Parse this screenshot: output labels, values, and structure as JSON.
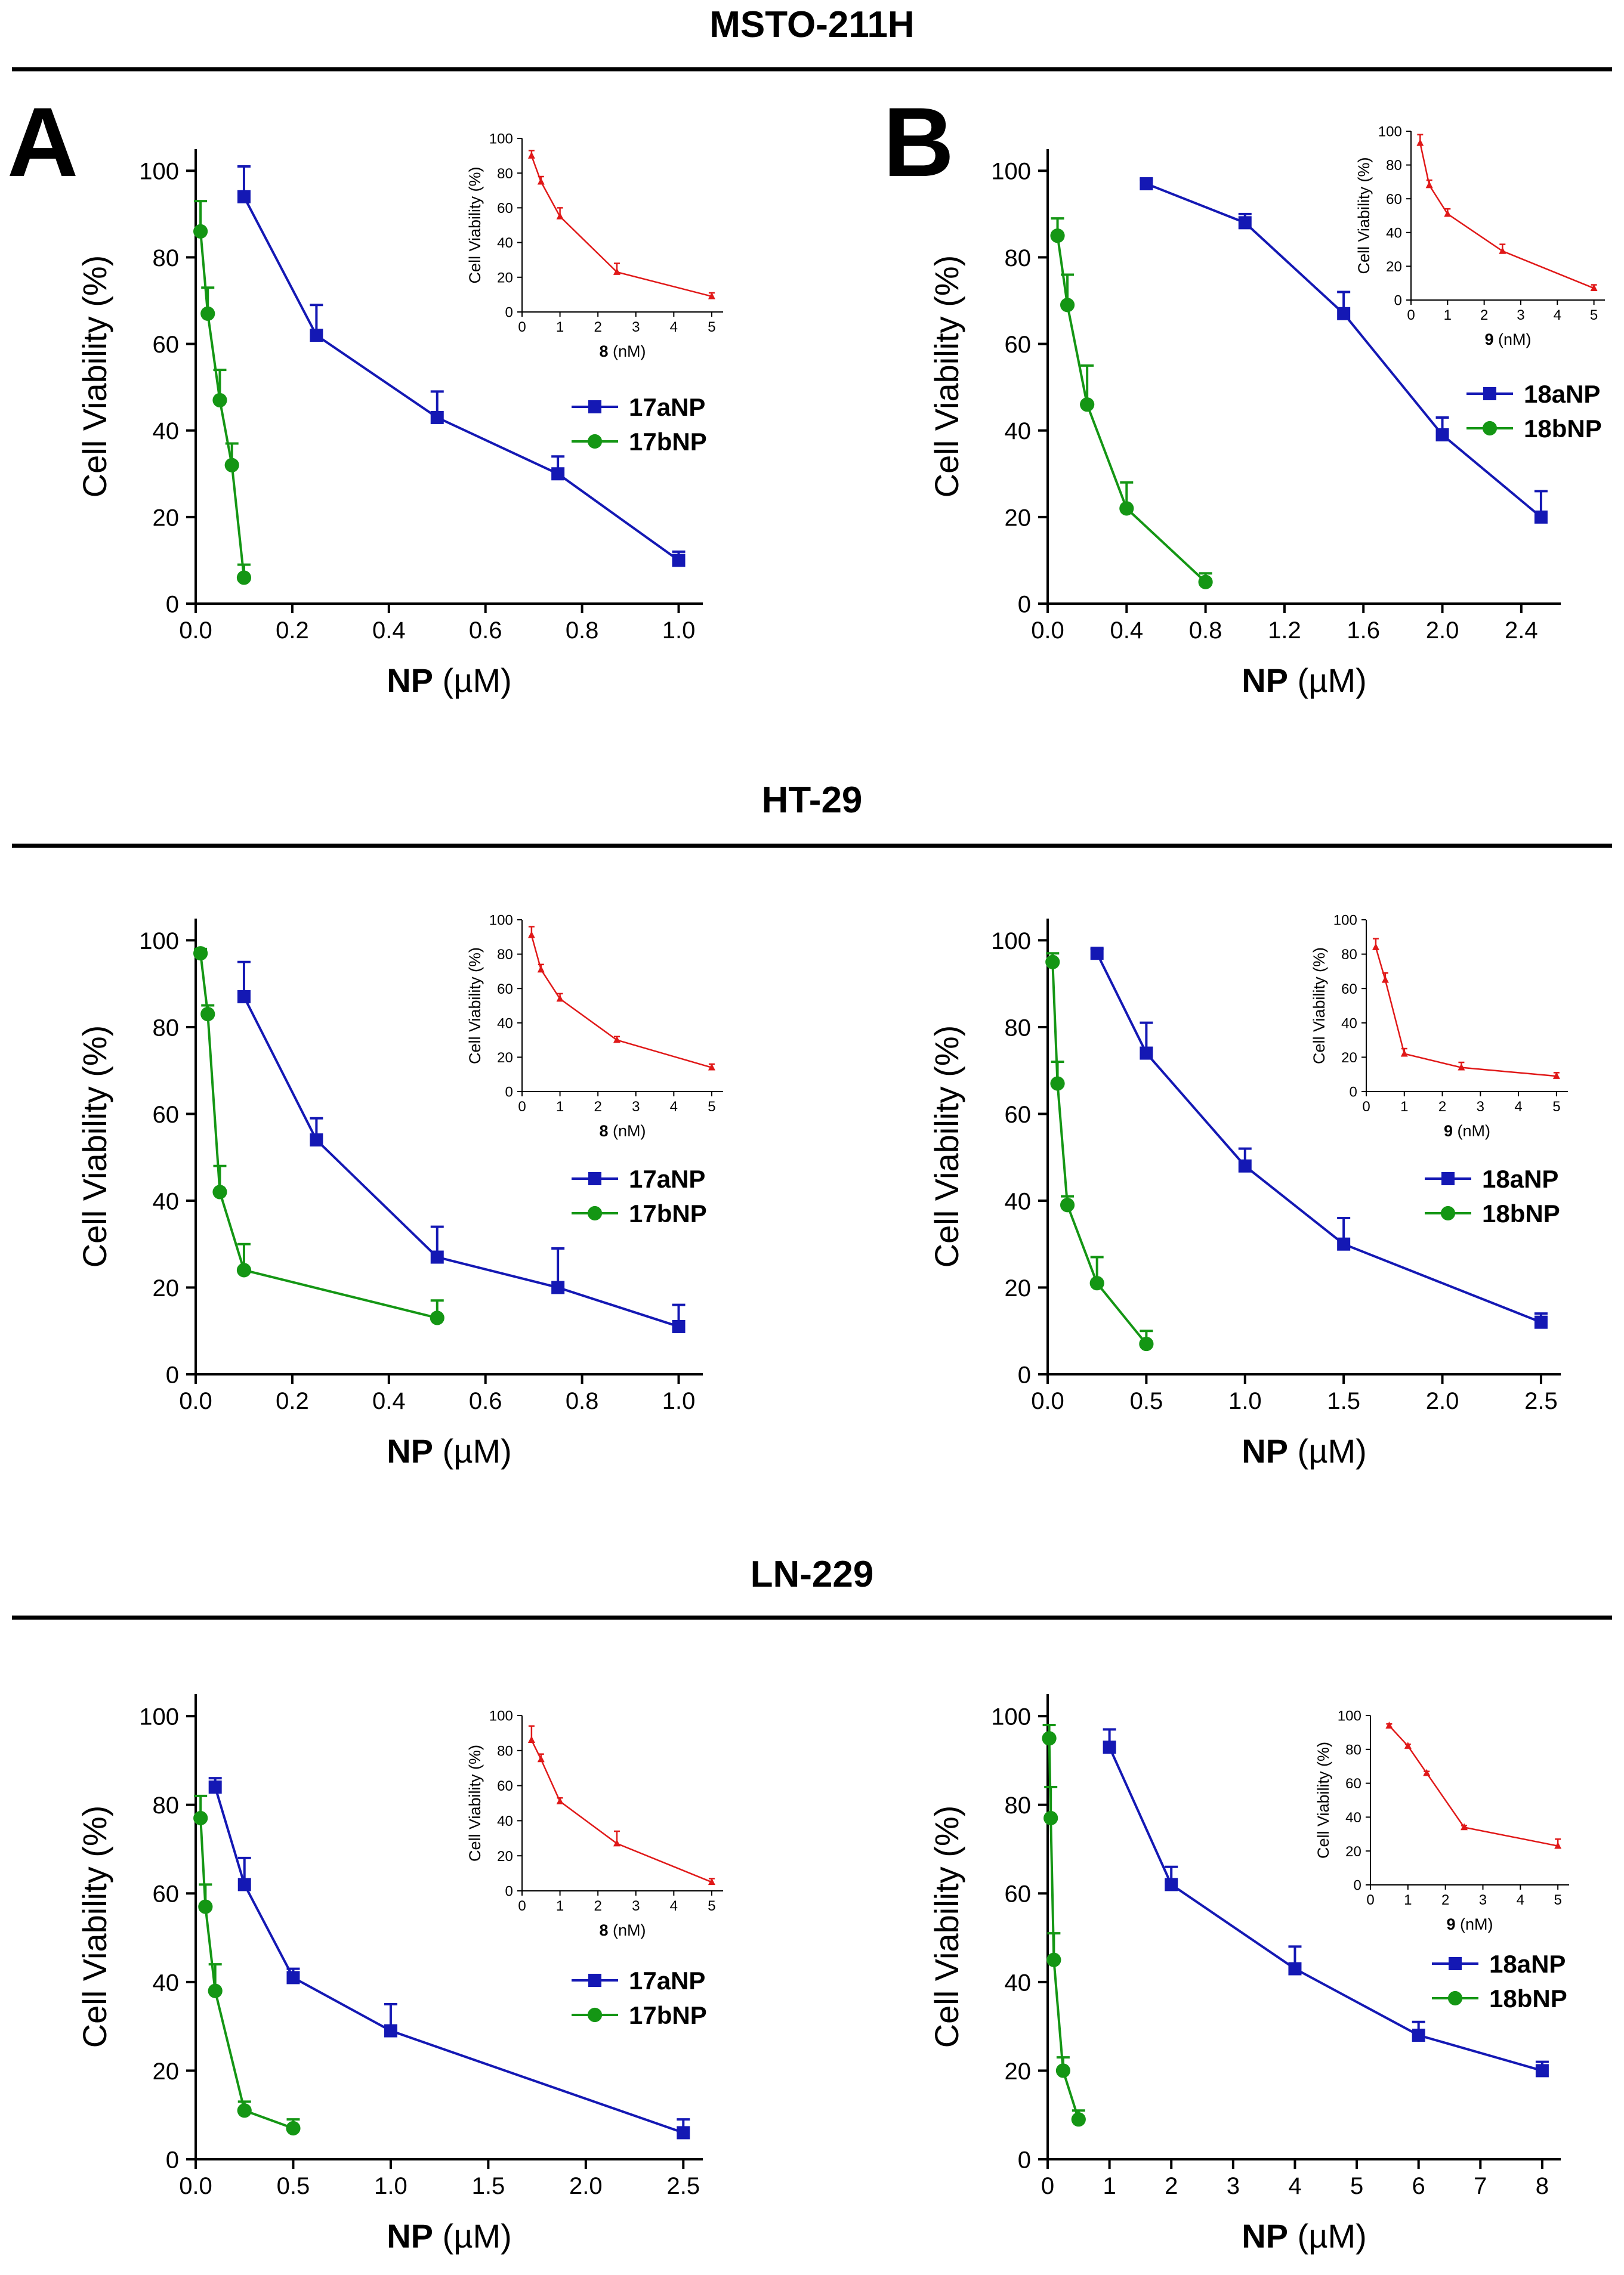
{
  "panel_letters": [
    "A",
    "B"
  ],
  "colors": {
    "blue": "#1418b4",
    "green": "#149614",
    "red": "#e01818",
    "axis": "#000000"
  },
  "sections": [
    {
      "title": "MSTO-211H"
    },
    {
      "title": "HT-29"
    },
    {
      "title": "LN-229"
    }
  ],
  "chart_data": [
    {
      "id": "msto-17",
      "section": "MSTO-211H",
      "panel": "A",
      "type": "line",
      "xlabel_bold": "NP",
      "xlabel_rest": " (µM)",
      "ylabel": "Cell Viability (%)",
      "xlim": [
        0,
        1.05
      ],
      "ylim": [
        0,
        105
      ],
      "xticks": [
        0,
        0.2,
        0.4,
        0.6,
        0.8,
        1.0
      ],
      "xtick_labels": [
        "0.0",
        "0.2",
        "0.4",
        "0.6",
        "0.8",
        "1.0"
      ],
      "yticks": [
        0,
        20,
        40,
        60,
        80,
        100
      ],
      "ytick_labels": [
        "0",
        "20",
        "40",
        "60",
        "80",
        "100"
      ],
      "series": [
        {
          "name": "17aNP",
          "color": "#1418b4",
          "marker": "square",
          "x": [
            0.1,
            0.25,
            0.5,
            0.75,
            1.0
          ],
          "y": [
            94,
            62,
            43,
            30,
            10
          ],
          "err": [
            7,
            7,
            6,
            4,
            2
          ]
        },
        {
          "name": "17bNP",
          "color": "#149614",
          "marker": "circle",
          "x": [
            0.01,
            0.025,
            0.05,
            0.075,
            0.1
          ],
          "y": [
            86,
            67,
            47,
            32,
            6
          ],
          "err": [
            7,
            6,
            7,
            5,
            3
          ]
        }
      ],
      "inset": {
        "xlabel_bold": "8",
        "xlabel_rest": " (nM)",
        "ylabel": "Cell Viability (%)",
        "xlim": [
          0,
          5.3
        ],
        "ylim": [
          0,
          100
        ],
        "xticks": [
          0,
          1,
          2,
          3,
          4,
          5
        ],
        "xtick_labels": [
          "0",
          "1",
          "2",
          "3",
          "4",
          "5"
        ],
        "yticks": [
          0,
          20,
          40,
          60,
          80,
          100
        ],
        "ytick_labels": [
          "0",
          "20",
          "40",
          "60",
          "80",
          "100"
        ],
        "series": [
          {
            "name": "8",
            "color": "#e01818",
            "marker": "triangle",
            "x": [
              0.25,
              0.5,
              1.0,
              2.5,
              5.0
            ],
            "y": [
              90,
              75,
              55,
              23,
              9
            ],
            "err": [
              3,
              3,
              5,
              5,
              2
            ]
          }
        ]
      }
    },
    {
      "id": "msto-18",
      "section": "MSTO-211H",
      "panel": "B",
      "type": "line",
      "xlabel_bold": "NP",
      "xlabel_rest": " (µM)",
      "ylabel": "Cell Viability (%)",
      "xlim": [
        0,
        2.6
      ],
      "ylim": [
        0,
        105
      ],
      "xticks": [
        0,
        0.4,
        0.8,
        1.2,
        1.6,
        2.0,
        2.4
      ],
      "xtick_labels": [
        "0.0",
        "0.4",
        "0.8",
        "1.2",
        "1.6",
        "2.0",
        "2.4"
      ],
      "yticks": [
        0,
        20,
        40,
        60,
        80,
        100
      ],
      "ytick_labels": [
        "0",
        "20",
        "40",
        "60",
        "80",
        "100"
      ],
      "series": [
        {
          "name": "18aNP",
          "color": "#1418b4",
          "marker": "square",
          "x": [
            0.5,
            1.0,
            1.5,
            2.0,
            2.5
          ],
          "y": [
            97,
            88,
            67,
            39,
            20
          ],
          "err": [
            1,
            2,
            5,
            4,
            6
          ]
        },
        {
          "name": "18bNP",
          "color": "#149614",
          "marker": "circle",
          "x": [
            0.05,
            0.1,
            0.2,
            0.4,
            0.8
          ],
          "y": [
            85,
            69,
            46,
            22,
            5
          ],
          "err": [
            4,
            7,
            9,
            6,
            2
          ]
        }
      ],
      "inset": {
        "xlabel_bold": "9",
        "xlabel_rest": " (nM)",
        "ylabel": "Cell Viability (%)",
        "xlim": [
          0,
          5.3
        ],
        "ylim": [
          0,
          100
        ],
        "xticks": [
          0,
          1,
          2,
          3,
          4,
          5
        ],
        "xtick_labels": [
          "0",
          "1",
          "2",
          "3",
          "4",
          "5"
        ],
        "yticks": [
          0,
          20,
          40,
          60,
          80,
          100
        ],
        "ytick_labels": [
          "0",
          "20",
          "40",
          "60",
          "80",
          "100"
        ],
        "series": [
          {
            "name": "9",
            "color": "#e01818",
            "marker": "triangle",
            "x": [
              0.25,
              0.5,
              1.0,
              2.5,
              5.0
            ],
            "y": [
              93,
              68,
              51,
              29,
              7
            ],
            "err": [
              5,
              3,
              3,
              4,
              2
            ]
          }
        ]
      }
    },
    {
      "id": "ht29-17",
      "section": "HT-29",
      "panel": "",
      "type": "line",
      "xlabel_bold": "NP",
      "xlabel_rest": " (µM)",
      "ylabel": "Cell Viability (%)",
      "xlim": [
        0,
        1.05
      ],
      "ylim": [
        0,
        105
      ],
      "xticks": [
        0,
        0.2,
        0.4,
        0.6,
        0.8,
        1.0
      ],
      "xtick_labels": [
        "0.0",
        "0.2",
        "0.4",
        "0.6",
        "0.8",
        "1.0"
      ],
      "yticks": [
        0,
        20,
        40,
        60,
        80,
        100
      ],
      "ytick_labels": [
        "0",
        "20",
        "40",
        "60",
        "80",
        "100"
      ],
      "series": [
        {
          "name": "17aNP",
          "color": "#1418b4",
          "marker": "square",
          "x": [
            0.1,
            0.25,
            0.5,
            0.75,
            1.0
          ],
          "y": [
            87,
            54,
            27,
            20,
            11
          ],
          "err": [
            8,
            5,
            7,
            9,
            5
          ]
        },
        {
          "name": "17bNP",
          "color": "#149614",
          "marker": "circle",
          "x": [
            0.01,
            0.025,
            0.05,
            0.1,
            0.5
          ],
          "y": [
            97,
            83,
            42,
            24,
            13
          ],
          "err": [
            1,
            2,
            6,
            6,
            4
          ]
        }
      ],
      "inset": {
        "xlabel_bold": "8",
        "xlabel_rest": " (nM)",
        "ylabel": "Cell Viability (%)",
        "xlim": [
          0,
          5.3
        ],
        "ylim": [
          0,
          100
        ],
        "xticks": [
          0,
          1,
          2,
          3,
          4,
          5
        ],
        "xtick_labels": [
          "0",
          "1",
          "2",
          "3",
          "4",
          "5"
        ],
        "yticks": [
          0,
          20,
          40,
          60,
          80,
          100
        ],
        "ytick_labels": [
          "0",
          "20",
          "40",
          "60",
          "80",
          "100"
        ],
        "series": [
          {
            "name": "8",
            "color": "#e01818",
            "marker": "triangle",
            "x": [
              0.25,
              0.5,
              1.0,
              2.5,
              5.0
            ],
            "y": [
              91,
              71,
              54,
              30,
              14
            ],
            "err": [
              5,
              3,
              3,
              2,
              2
            ]
          }
        ]
      }
    },
    {
      "id": "ht29-18",
      "section": "HT-29",
      "panel": "",
      "type": "line",
      "xlabel_bold": "NP",
      "xlabel_rest": " (µM)",
      "ylabel": "Cell Viability (%)",
      "xlim": [
        0,
        2.6
      ],
      "ylim": [
        0,
        105
      ],
      "xticks": [
        0,
        0.5,
        1.0,
        1.5,
        2.0,
        2.5
      ],
      "xtick_labels": [
        "0.0",
        "0.5",
        "1.0",
        "1.5",
        "2.0",
        "2.5"
      ],
      "yticks": [
        0,
        20,
        40,
        60,
        80,
        100
      ],
      "ytick_labels": [
        "0",
        "20",
        "40",
        "60",
        "80",
        "100"
      ],
      "series": [
        {
          "name": "18aNP",
          "color": "#1418b4",
          "marker": "square",
          "x": [
            0.25,
            0.5,
            1.0,
            1.5,
            2.5
          ],
          "y": [
            97,
            74,
            48,
            30,
            12
          ],
          "err": [
            1,
            7,
            4,
            6,
            2
          ]
        },
        {
          "name": "18bNP",
          "color": "#149614",
          "marker": "circle",
          "x": [
            0.025,
            0.05,
            0.1,
            0.25,
            0.5
          ],
          "y": [
            95,
            67,
            39,
            21,
            7
          ],
          "err": [
            2,
            5,
            2,
            6,
            3
          ]
        }
      ],
      "inset": {
        "xlabel_bold": "9",
        "xlabel_rest": " (nM)",
        "ylabel": "Cell Viability (%)",
        "xlim": [
          0,
          5.3
        ],
        "ylim": [
          0,
          100
        ],
        "xticks": [
          0,
          1,
          2,
          3,
          4,
          5
        ],
        "xtick_labels": [
          "0",
          "1",
          "2",
          "3",
          "4",
          "5"
        ],
        "yticks": [
          0,
          20,
          40,
          60,
          80,
          100
        ],
        "ytick_labels": [
          "0",
          "20",
          "40",
          "60",
          "80",
          "100"
        ],
        "series": [
          {
            "name": "9",
            "color": "#e01818",
            "marker": "triangle",
            "x": [
              0.25,
              0.5,
              1.0,
              2.5,
              5.0
            ],
            "y": [
              84,
              65,
              22,
              14,
              9
            ],
            "err": [
              5,
              4,
              3,
              3,
              2
            ]
          }
        ]
      }
    },
    {
      "id": "ln229-17",
      "section": "LN-229",
      "panel": "",
      "type": "line",
      "xlabel_bold": "NP",
      "xlabel_rest": " (µM)",
      "ylabel": "Cell Viability (%)",
      "xlim": [
        0,
        2.6
      ],
      "ylim": [
        0,
        105
      ],
      "xticks": [
        0,
        0.5,
        1.0,
        1.5,
        2.0,
        2.5
      ],
      "xtick_labels": [
        "0.0",
        "0.5",
        "1.0",
        "1.5",
        "2.0",
        "2.5"
      ],
      "yticks": [
        0,
        20,
        40,
        60,
        80,
        100
      ],
      "ytick_labels": [
        "0",
        "20",
        "40",
        "60",
        "80",
        "100"
      ],
      "series": [
        {
          "name": "17aNP",
          "color": "#1418b4",
          "marker": "square",
          "x": [
            0.1,
            0.25,
            0.5,
            1.0,
            2.5
          ],
          "y": [
            84,
            62,
            41,
            29,
            6
          ],
          "err": [
            2,
            6,
            2,
            6,
            3
          ]
        },
        {
          "name": "17bNP",
          "color": "#149614",
          "marker": "circle",
          "x": [
            0.025,
            0.05,
            0.1,
            0.25,
            0.5
          ],
          "y": [
            77,
            57,
            38,
            11,
            7
          ],
          "err": [
            5,
            5,
            6,
            2,
            2
          ]
        }
      ],
      "inset": {
        "xlabel_bold": "8",
        "xlabel_rest": " (nM)",
        "ylabel": "Cell Viability (%)",
        "xlim": [
          0,
          5.3
        ],
        "ylim": [
          0,
          100
        ],
        "xticks": [
          0,
          1,
          2,
          3,
          4,
          5
        ],
        "xtick_labels": [
          "0",
          "1",
          "2",
          "3",
          "4",
          "5"
        ],
        "yticks": [
          0,
          20,
          40,
          60,
          80,
          100
        ],
        "ytick_labels": [
          "0",
          "20",
          "40",
          "60",
          "80",
          "100"
        ],
        "series": [
          {
            "name": "8",
            "color": "#e01818",
            "marker": "triangle",
            "x": [
              0.25,
              0.5,
              1.0,
              2.5,
              5.0
            ],
            "y": [
              86,
              75,
              51,
              27,
              5
            ],
            "err": [
              8,
              3,
              2,
              7,
              2
            ]
          }
        ]
      }
    },
    {
      "id": "ln229-18",
      "section": "LN-229",
      "panel": "",
      "type": "line",
      "xlabel_bold": "NP",
      "xlabel_rest": " (µM)",
      "ylabel": "Cell Viability (%)",
      "xlim": [
        0,
        8.3
      ],
      "ylim": [
        0,
        105
      ],
      "xticks": [
        0,
        1,
        2,
        3,
        4,
        5,
        6,
        7,
        8
      ],
      "xtick_labels": [
        "0",
        "1",
        "2",
        "3",
        "4",
        "5",
        "6",
        "7",
        "8"
      ],
      "yticks": [
        0,
        20,
        40,
        60,
        80,
        100
      ],
      "ytick_labels": [
        "0",
        "20",
        "40",
        "60",
        "80",
        "100"
      ],
      "series": [
        {
          "name": "18aNP",
          "color": "#1418b4",
          "marker": "square",
          "x": [
            1,
            2,
            4,
            6,
            8
          ],
          "y": [
            93,
            62,
            43,
            28,
            20
          ],
          "err": [
            4,
            4,
            5,
            3,
            2
          ]
        },
        {
          "name": "18bNP",
          "color": "#149614",
          "marker": "circle",
          "x": [
            0.025,
            0.05,
            0.1,
            0.25,
            0.5
          ],
          "y": [
            95,
            77,
            45,
            20,
            9
          ],
          "err": [
            3,
            7,
            6,
            3,
            2
          ]
        }
      ],
      "inset": {
        "xlabel_bold": "9",
        "xlabel_rest": " (nM)",
        "ylabel": "Cell Viability (%)",
        "xlim": [
          0,
          5.3
        ],
        "ylim": [
          0,
          100
        ],
        "xticks": [
          0,
          1,
          2,
          3,
          4,
          5
        ],
        "xtick_labels": [
          "0",
          "1",
          "2",
          "3",
          "4",
          "5"
        ],
        "yticks": [
          0,
          20,
          40,
          60,
          80,
          100
        ],
        "ytick_labels": [
          "0",
          "20",
          "40",
          "60",
          "80",
          "100"
        ],
        "series": [
          {
            "name": "9",
            "color": "#e01818",
            "marker": "triangle",
            "x": [
              0.5,
              1.0,
              1.5,
              2.5,
              5.0
            ],
            "y": [
              94,
              82,
              66,
              34,
              23
            ],
            "err": [
              1,
              1,
              1,
              1,
              4
            ]
          }
        ]
      }
    }
  ]
}
